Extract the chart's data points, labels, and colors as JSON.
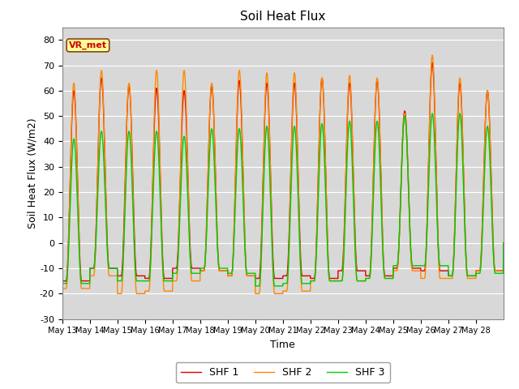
{
  "title": "Soil Heat Flux",
  "xlabel": "Time",
  "ylabel": "Soil Heat Flux (W/m2)",
  "ylim": [
    -30,
    85
  ],
  "yticks": [
    -30,
    -20,
    -10,
    0,
    10,
    20,
    30,
    40,
    50,
    60,
    70,
    80
  ],
  "background_color": "#d8d8d8",
  "plot_bg_color": "#d8d8d8",
  "legend_labels": [
    "SHF 1",
    "SHF 2",
    "SHF 3"
  ],
  "legend_colors": [
    "#dd0000",
    "#ff8800",
    "#00cc00"
  ],
  "n_days": 16,
  "day_start": 13,
  "shf1_peaks": [
    60,
    65,
    62,
    61,
    60,
    62,
    64,
    63,
    63,
    65,
    63,
    64,
    52,
    71,
    63,
    60
  ],
  "shf2_peaks": [
    63,
    68,
    63,
    68,
    68,
    63,
    68,
    67,
    67,
    65,
    66,
    65,
    51,
    74,
    65,
    60
  ],
  "shf3_peaks": [
    41,
    44,
    44,
    44,
    42,
    45,
    45,
    46,
    46,
    47,
    48,
    48,
    50,
    51,
    51,
    46
  ],
  "shf1_troughs": [
    -15,
    -10,
    -13,
    -14,
    -10,
    -11,
    -13,
    -14,
    -13,
    -14,
    -11,
    -13,
    -10,
    -11,
    -13,
    -11
  ],
  "shf2_troughs": [
    -18,
    -13,
    -20,
    -19,
    -15,
    -11,
    -13,
    -20,
    -19,
    -15,
    -15,
    -14,
    -11,
    -14,
    -14,
    -11
  ],
  "shf3_troughs": [
    -16,
    -10,
    -15,
    -15,
    -12,
    -10,
    -12,
    -17,
    -16,
    -15,
    -15,
    -14,
    -9,
    -9,
    -13,
    -12
  ]
}
